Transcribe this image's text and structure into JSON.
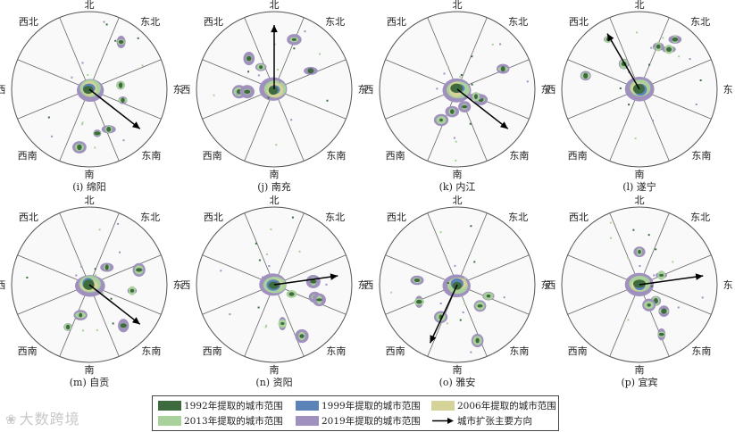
{
  "directions": {
    "n": "北",
    "s": "南",
    "e": "东",
    "w": "西",
    "ne": "东北",
    "nw": "西北",
    "se": "东南",
    "sw": "西南"
  },
  "panels": [
    {
      "caption": "(i) 绵阳",
      "trend": "东南"
    },
    {
      "caption": "(j) 南充",
      "trend": "北"
    },
    {
      "caption": "(k) 内江",
      "trend": "东南"
    },
    {
      "caption": "(l) 遂宁",
      "trend": "西北"
    },
    {
      "caption": "(m) 自贡",
      "trend": "东南"
    },
    {
      "caption": "(n) 资阳",
      "trend": "东"
    },
    {
      "caption": "(o) 雅安",
      "trend": "西南"
    },
    {
      "caption": "(p) 宜宾",
      "trend": "东"
    }
  ],
  "legend": {
    "items": [
      {
        "label": "1992年提取的城市范围",
        "color": "#3d6b3d"
      },
      {
        "label": "1999年提取的城市范围",
        "color": "#5b83b8"
      },
      {
        "label": "2006年提取的城市范围",
        "color": "#d6d39a"
      },
      {
        "label": "2013年提取的城市范围",
        "color": "#a9d19c"
      },
      {
        "label": "2019年提取的城市范围",
        "color": "#9f90bd"
      }
    ],
    "arrow_label": "城市扩张主要方向"
  },
  "watermark": "大数跨境"
}
